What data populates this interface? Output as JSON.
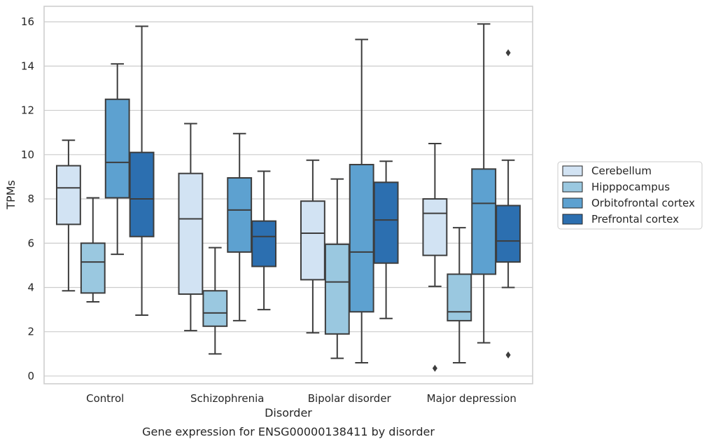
{
  "figure_caption": "Gene expression for ENSG00000138411 by disorder",
  "chart_data": {
    "type": "boxplot",
    "xlabel": "Disorder",
    "ylabel": "TPMs",
    "ylim": [
      -0.35,
      16.7
    ],
    "yticks": [
      0,
      2,
      4,
      6,
      8,
      10,
      12,
      14,
      16
    ],
    "grid": "horizontal",
    "legend_placement": "right",
    "categories": [
      "Control",
      "Schizophrenia",
      "Bipolar disorder",
      "Major depression"
    ],
    "series": [
      {
        "name": "Cerebellum",
        "color": "#d2e3f3",
        "boxes": [
          {
            "whisker_low": 3.85,
            "q1": 6.85,
            "median": 8.5,
            "q3": 9.5,
            "whisker_high": 10.65,
            "outliers": []
          },
          {
            "whisker_low": 2.05,
            "q1": 3.7,
            "median": 7.1,
            "q3": 9.15,
            "whisker_high": 11.4,
            "outliers": []
          },
          {
            "whisker_low": 1.95,
            "q1": 4.35,
            "median": 6.45,
            "q3": 7.9,
            "whisker_high": 9.75,
            "outliers": []
          },
          {
            "whisker_low": 4.05,
            "q1": 5.45,
            "median": 7.35,
            "q3": 8.0,
            "whisker_high": 10.5,
            "outliers": [
              0.35
            ]
          }
        ]
      },
      {
        "name": "Hipppocampus",
        "color": "#9ac8e0",
        "boxes": [
          {
            "whisker_low": 3.35,
            "q1": 3.75,
            "median": 5.15,
            "q3": 6.0,
            "whisker_high": 8.05,
            "outliers": []
          },
          {
            "whisker_low": 1.0,
            "q1": 2.25,
            "median": 2.85,
            "q3": 3.85,
            "whisker_high": 5.8,
            "outliers": []
          },
          {
            "whisker_low": 0.8,
            "q1": 1.9,
            "median": 4.25,
            "q3": 5.95,
            "whisker_high": 8.9,
            "outliers": []
          },
          {
            "whisker_low": 0.6,
            "q1": 2.5,
            "median": 2.9,
            "q3": 4.6,
            "whisker_high": 6.7,
            "outliers": []
          }
        ]
      },
      {
        "name": "Orbitofrontal cortex",
        "color": "#5da1d0",
        "boxes": [
          {
            "whisker_low": 5.5,
            "q1": 8.05,
            "median": 9.65,
            "q3": 12.5,
            "whisker_high": 14.1,
            "outliers": []
          },
          {
            "whisker_low": 2.5,
            "q1": 5.6,
            "median": 7.5,
            "q3": 8.95,
            "whisker_high": 10.95,
            "outliers": []
          },
          {
            "whisker_low": 0.6,
            "q1": 2.9,
            "median": 5.6,
            "q3": 9.55,
            "whisker_high": 15.2,
            "outliers": []
          },
          {
            "whisker_low": 1.5,
            "q1": 4.6,
            "median": 7.8,
            "q3": 9.35,
            "whisker_high": 15.9,
            "outliers": []
          }
        ]
      },
      {
        "name": "Prefrontal cortex",
        "color": "#2c6fb0",
        "boxes": [
          {
            "whisker_low": 2.75,
            "q1": 6.3,
            "median": 8.0,
            "q3": 10.1,
            "whisker_high": 15.8,
            "outliers": []
          },
          {
            "whisker_low": 3.0,
            "q1": 4.95,
            "median": 6.3,
            "q3": 7.0,
            "whisker_high": 9.25,
            "outliers": []
          },
          {
            "whisker_low": 2.6,
            "q1": 5.1,
            "median": 7.05,
            "q3": 8.75,
            "whisker_high": 9.7,
            "outliers": []
          },
          {
            "whisker_low": 4.0,
            "q1": 5.15,
            "median": 6.1,
            "q3": 7.7,
            "whisker_high": 9.75,
            "outliers": [
              14.6,
              0.95
            ]
          }
        ]
      }
    ]
  }
}
